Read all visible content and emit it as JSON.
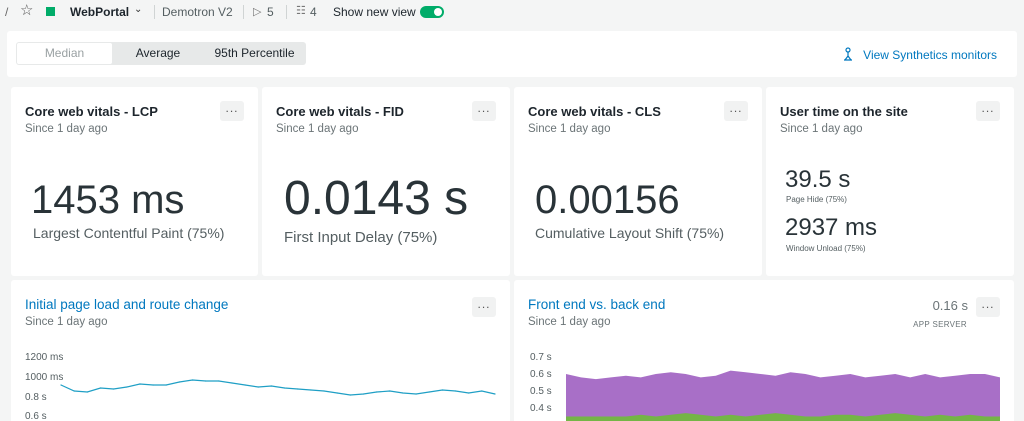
{
  "topbar": {
    "slash": "/",
    "entity_name": "WebPortal",
    "account": "Demotron V2",
    "tags_count": "5",
    "hosts_count": "4",
    "show_new_view_label": "Show new view",
    "show_new_view_on": true,
    "colors": {
      "entity_status": "#00ac69",
      "toggle": "#00ac69"
    }
  },
  "controls": {
    "stat_options": [
      "Median",
      "Average",
      "95th Percentile"
    ],
    "selected": "Median",
    "synthetics_link": "View Synthetics monitors"
  },
  "cards": {
    "lcp": {
      "title": "Core web vitals - LCP",
      "subtitle": "Since 1 day ago",
      "value": "1453 ms",
      "label": "Largest Contentful Paint (75%)"
    },
    "fid": {
      "title": "Core web vitals - FID",
      "subtitle": "Since 1 day ago",
      "value": "0.0143 s",
      "label": "First Input Delay (75%)"
    },
    "cls": {
      "title": "Core web vitals - CLS",
      "subtitle": "Since 1 day ago",
      "value": "0.00156",
      "label": "Cumulative Layout Shift (75%)"
    },
    "user_time": {
      "title": "User time on the site",
      "subtitle": "Since 1 day ago",
      "page_hide_value": "39.5 s",
      "page_hide_label": "Page Hide (75%)",
      "window_unload_value": "2937 ms",
      "window_unload_label": "Window Unload (75%)"
    },
    "page_load": {
      "title": "Initial page load and route change",
      "subtitle": "Since 1 day ago"
    },
    "front_back": {
      "title": "Front end vs. back end",
      "subtitle": "Since 1 day ago",
      "metric_value": "0.16 s",
      "metric_label": "APP SERVER"
    },
    "more_label": "..."
  },
  "chart_data": [
    {
      "type": "line",
      "title": "Initial page load and route change",
      "ytick_labels": [
        "1200 ms",
        "1000 ms",
        "0.8 s",
        "0.6 s"
      ],
      "series": [
        {
          "color": "#1f9fc5",
          "values": [
            0.92,
            0.86,
            0.85,
            0.89,
            0.88,
            0.9,
            0.93,
            0.92,
            0.92,
            0.95,
            0.97,
            0.96,
            0.96,
            0.94,
            0.92,
            0.9,
            0.91,
            0.89,
            0.88,
            0.87,
            0.86,
            0.84,
            0.82,
            0.83,
            0.85,
            0.86,
            0.84,
            0.83,
            0.85,
            0.87,
            0.86,
            0.84,
            0.86,
            0.83
          ]
        }
      ]
    },
    {
      "type": "area",
      "title": "Front end vs. back end",
      "ytick_labels": [
        "0.7 s",
        "0.6 s",
        "0.5 s",
        "0.4 s"
      ],
      "series": [
        {
          "color": "#a86fc7",
          "values": [
            0.6,
            0.58,
            0.57,
            0.58,
            0.59,
            0.58,
            0.6,
            0.61,
            0.6,
            0.58,
            0.59,
            0.62,
            0.61,
            0.6,
            0.59,
            0.61,
            0.6,
            0.58,
            0.59,
            0.6,
            0.58,
            0.59,
            0.6,
            0.58,
            0.6,
            0.58,
            0.59,
            0.6,
            0.6,
            0.58
          ]
        },
        {
          "color": "#74b546",
          "values": [
            0.35,
            0.35,
            0.35,
            0.35,
            0.35,
            0.36,
            0.35,
            0.36,
            0.37,
            0.36,
            0.35,
            0.36,
            0.35,
            0.36,
            0.37,
            0.36,
            0.35,
            0.35,
            0.36,
            0.36,
            0.35,
            0.36,
            0.37,
            0.36,
            0.35,
            0.36,
            0.35,
            0.36,
            0.35,
            0.35
          ]
        }
      ]
    }
  ]
}
